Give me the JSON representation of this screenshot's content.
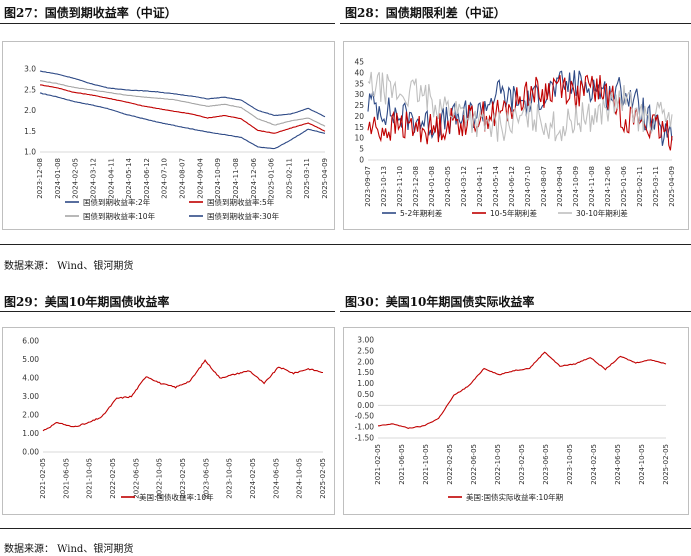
{
  "panels": [
    {
      "title": "图27：国债到期收益率（中证）"
    },
    {
      "title": "图28：国债期限利差（中证）"
    },
    {
      "title": "图29：美国10年期国债收益率"
    },
    {
      "title": "图30：美国10年期国债实际收益率"
    }
  ],
  "sources": [
    "数据来源：  Wind、银河期货",
    "数据来源：  Wind、银河期货"
  ],
  "colors": {
    "navy": "#2e4a86",
    "red": "#c00000",
    "gray": "#a6a6a6",
    "light_gray": "#bfbfbf"
  },
  "chart_data": [
    {
      "type": "line",
      "title": "",
      "x_ticks": [
        "2023-12-08",
        "2024-01-08",
        "2024-02-05",
        "2024-03-12",
        "2024-04-11",
        "2024-05-14",
        "2024-06-12",
        "2024-07-10",
        "2024-08-07",
        "2024-09-04",
        "2024-10-09",
        "2024-11-08",
        "2024-12-06",
        "2025-01-06",
        "2025-02-11",
        "2025-03-11",
        "2025-04-09"
      ],
      "ylim": [
        1.0,
        3.0
      ],
      "y_ticks": [
        "1.0",
        "1.5",
        "2.0",
        "2.5",
        "3.0"
      ],
      "series": [
        {
          "name": "国债到期收益率:2年",
          "color": "#2e4a86",
          "values": [
            2.42,
            2.33,
            2.22,
            2.14,
            2.05,
            1.92,
            1.82,
            1.72,
            1.64,
            1.56,
            1.48,
            1.42,
            1.35,
            1.12,
            1.08,
            1.3,
            1.55,
            1.45
          ]
        },
        {
          "name": "国债到期收益率:5年",
          "color": "#c00000",
          "values": [
            2.62,
            2.55,
            2.44,
            2.38,
            2.3,
            2.22,
            2.12,
            2.05,
            1.98,
            1.92,
            1.82,
            1.88,
            1.8,
            1.52,
            1.45,
            1.58,
            1.7,
            1.5
          ]
        },
        {
          "name": "国债到期收益率:10年",
          "color": "#a6a6a6",
          "values": [
            2.72,
            2.65,
            2.56,
            2.5,
            2.44,
            2.38,
            2.33,
            2.3,
            2.26,
            2.18,
            2.1,
            2.15,
            2.07,
            1.8,
            1.65,
            1.75,
            1.82,
            1.62
          ]
        },
        {
          "name": "国债到期收益率:30年",
          "color": "#8c8c8c",
          "values": [
            2.95,
            2.88,
            2.78,
            2.65,
            2.55,
            2.5,
            2.48,
            2.45,
            2.4,
            2.35,
            2.28,
            2.32,
            2.25,
            2.0,
            1.88,
            1.92,
            2.05,
            1.85
          ]
        }
      ]
    },
    {
      "type": "line",
      "title": "",
      "x_ticks": [
        "2023-09-07",
        "2023-10-13",
        "2023-11-10",
        "2023-12-08",
        "2024-01-08",
        "2024-02-05",
        "2024-03-12",
        "2024-04-11",
        "2024-05-14",
        "2024-06-12",
        "2024-07-10",
        "2024-08-07",
        "2024-09-04",
        "2024-10-09",
        "2024-11-08",
        "2024-12-06",
        "2025-01-06",
        "2025-02-11",
        "2025-03-11",
        "2025-04-09"
      ],
      "ylim": [
        0,
        45
      ],
      "y_ticks": [
        "0",
        "5",
        "10",
        "15",
        "20",
        "25",
        "30",
        "35",
        "40",
        "45"
      ],
      "series": [
        {
          "name": "5-2年期利差",
          "color": "#2e4a86",
          "values": [
            27,
            23,
            20,
            19,
            16,
            18,
            20,
            22,
            31,
            28,
            26,
            31,
            34,
            35,
            34,
            30,
            32,
            24,
            14,
            9
          ]
        },
        {
          "name": "10-5年期利差",
          "color": "#c00000",
          "values": [
            15,
            14,
            16,
            15,
            14,
            17,
            18,
            20,
            21,
            24,
            32,
            30,
            36,
            29,
            34,
            30,
            20,
            18,
            14,
            11
          ]
        },
        {
          "name": "30-10年期利差",
          "color": "#a6a6a6",
          "values": [
            34,
            33,
            30,
            31,
            27,
            24,
            22,
            16,
            15,
            17,
            20,
            18,
            14,
            19,
            20,
            24,
            28,
            19,
            20,
            21
          ]
        }
      ]
    },
    {
      "type": "line",
      "title": "",
      "x_ticks": [
        "2021-02-05",
        "2021-06-05",
        "2021-10-05",
        "2022-02-05",
        "2022-06-05",
        "2022-10-05",
        "2023-02-05",
        "2023-06-05",
        "2023-10-05",
        "2024-02-05",
        "2024-06-05",
        "2024-10-05",
        "2025-02-05"
      ],
      "ylim": [
        0,
        6
      ],
      "y_ticks": [
        "0.00",
        "1.00",
        "2.00",
        "3.00",
        "4.00",
        "5.00",
        "6.00"
      ],
      "series": [
        {
          "name": "美国:国债收益率:10年",
          "color": "#c00000",
          "values": [
            1.15,
            1.6,
            1.35,
            1.55,
            1.9,
            2.9,
            3.0,
            4.1,
            3.7,
            3.5,
            3.85,
            4.95,
            4.0,
            4.2,
            4.4,
            3.7,
            4.6,
            4.25,
            4.5,
            4.3
          ]
        }
      ]
    },
    {
      "type": "line",
      "title": "",
      "x_ticks": [
        "2021-02-05",
        "2021-06-05",
        "2021-10-05",
        "2022-02-05",
        "2022-06-05",
        "2022-10-05",
        "2023-02-05",
        "2023-06-05",
        "2023-10-05",
        "2024-02-05",
        "2024-06-05",
        "2024-10-05",
        "2025-02-05"
      ],
      "ylim": [
        -1.5,
        3.0
      ],
      "y_ticks": [
        "-1.50",
        "-1.00",
        "-0.50",
        "0.00",
        "0.50",
        "1.00",
        "1.50",
        "2.00",
        "2.50",
        "3.00"
      ],
      "series": [
        {
          "name": "美国:国债实际收益率:10年期",
          "color": "#c00000",
          "values": [
            -0.95,
            -0.85,
            -1.05,
            -0.95,
            -0.6,
            0.45,
            0.9,
            1.7,
            1.4,
            1.6,
            1.7,
            2.45,
            1.8,
            1.9,
            2.2,
            1.65,
            2.25,
            1.95,
            2.1,
            1.9
          ]
        }
      ]
    }
  ]
}
